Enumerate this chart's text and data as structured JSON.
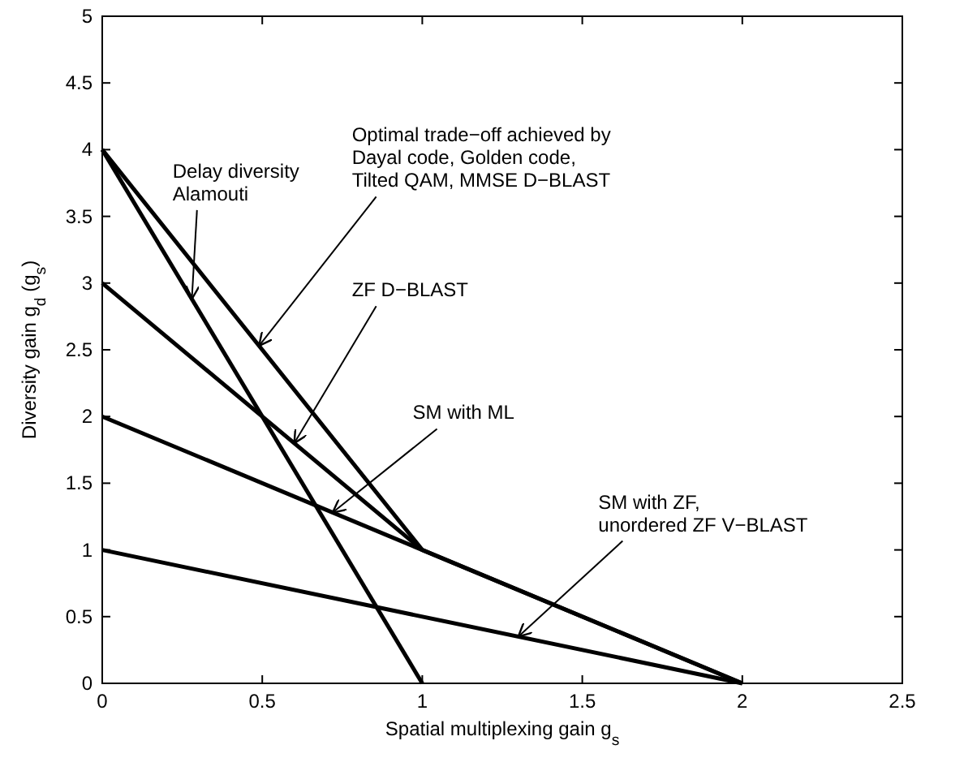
{
  "chart_data": {
    "type": "line",
    "xlabel": "Spatial multiplexing gain g$_{s}$",
    "ylabel": "Diversity gain g$_{d}$ (g$_{s}$)",
    "xlim": [
      0,
      2.5
    ],
    "xticks": [
      0,
      0.5,
      1,
      1.5,
      2,
      2.5
    ],
    "ylim": [
      0,
      5
    ],
    "yticks": [
      0,
      0.5,
      1,
      1.5,
      2,
      2.5,
      3,
      3.5,
      4,
      4.5,
      5
    ],
    "grid": false,
    "marker": "none",
    "line_style": "solid",
    "series": [
      {
        "color": "#000000",
        "x": [
          0,
          1
        ],
        "values": [
          4,
          0
        ]
      },
      {
        "color": "#000000",
        "x": [
          0,
          1,
          2
        ],
        "values": [
          4,
          1,
          0
        ]
      },
      {
        "color": "#000000",
        "x": [
          0,
          1
        ],
        "values": [
          3,
          1
        ]
      },
      {
        "color": "#000000",
        "x": [
          0,
          2
        ],
        "values": [
          2,
          0
        ]
      },
      {
        "color": "#000000",
        "x": [
          0,
          2
        ],
        "values": [
          1,
          0
        ]
      }
    ],
    "annotations": [
      {
        "text": "Delay diversity\nAlamouti",
        "x": 0.28,
        "y": 2.88
      },
      {
        "text": "Optimal trade−off achieved by\nDayal code, Golden code,\nTilted QAM, MMSE D−BLAST",
        "x": 0.49,
        "y": 2.53
      },
      {
        "text": "ZF D−BLAST",
        "x": 0.6,
        "y": 1.8
      },
      {
        "text": "SM with ML",
        "x": 0.72,
        "y": 1.28
      },
      {
        "text": "SM with ZF,\nunordered ZF V−BLAST",
        "x": 1.3,
        "y": 0.35
      }
    ]
  }
}
